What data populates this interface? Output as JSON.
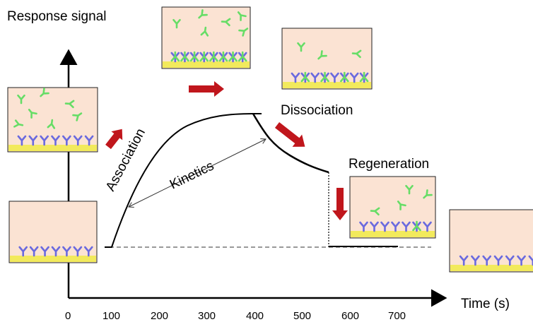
{
  "axes": {
    "y_label": "Response signal",
    "x_label": "Time (s)",
    "x_ticks": [
      "0",
      "100",
      "200",
      "300",
      "400",
      "500",
      "600",
      "700"
    ]
  },
  "labels": {
    "association": "Association",
    "kinetics": "Kinetics",
    "dissociation": "Dissociation",
    "regeneration": "Regeneration"
  },
  "colors": {
    "panel_fill": "#fbe3d3",
    "surface": "#f2ea5c",
    "receptor": "#6a6adf",
    "analyte": "#66dd66",
    "arrow": "#c0161c"
  },
  "panels": [
    {
      "id": "baseline",
      "analyte_count": 0,
      "bound_count": 0
    },
    {
      "id": "association",
      "analyte_count": 7,
      "bound_count": 0
    },
    {
      "id": "saturation",
      "analyte_count": 6,
      "bound_count": 8
    },
    {
      "id": "dissociation",
      "analyte_count": 3,
      "bound_count": 4
    },
    {
      "id": "regeneration",
      "analyte_count": 5,
      "bound_count": 1
    },
    {
      "id": "final",
      "analyte_count": 0,
      "bound_count": 0
    }
  ]
}
